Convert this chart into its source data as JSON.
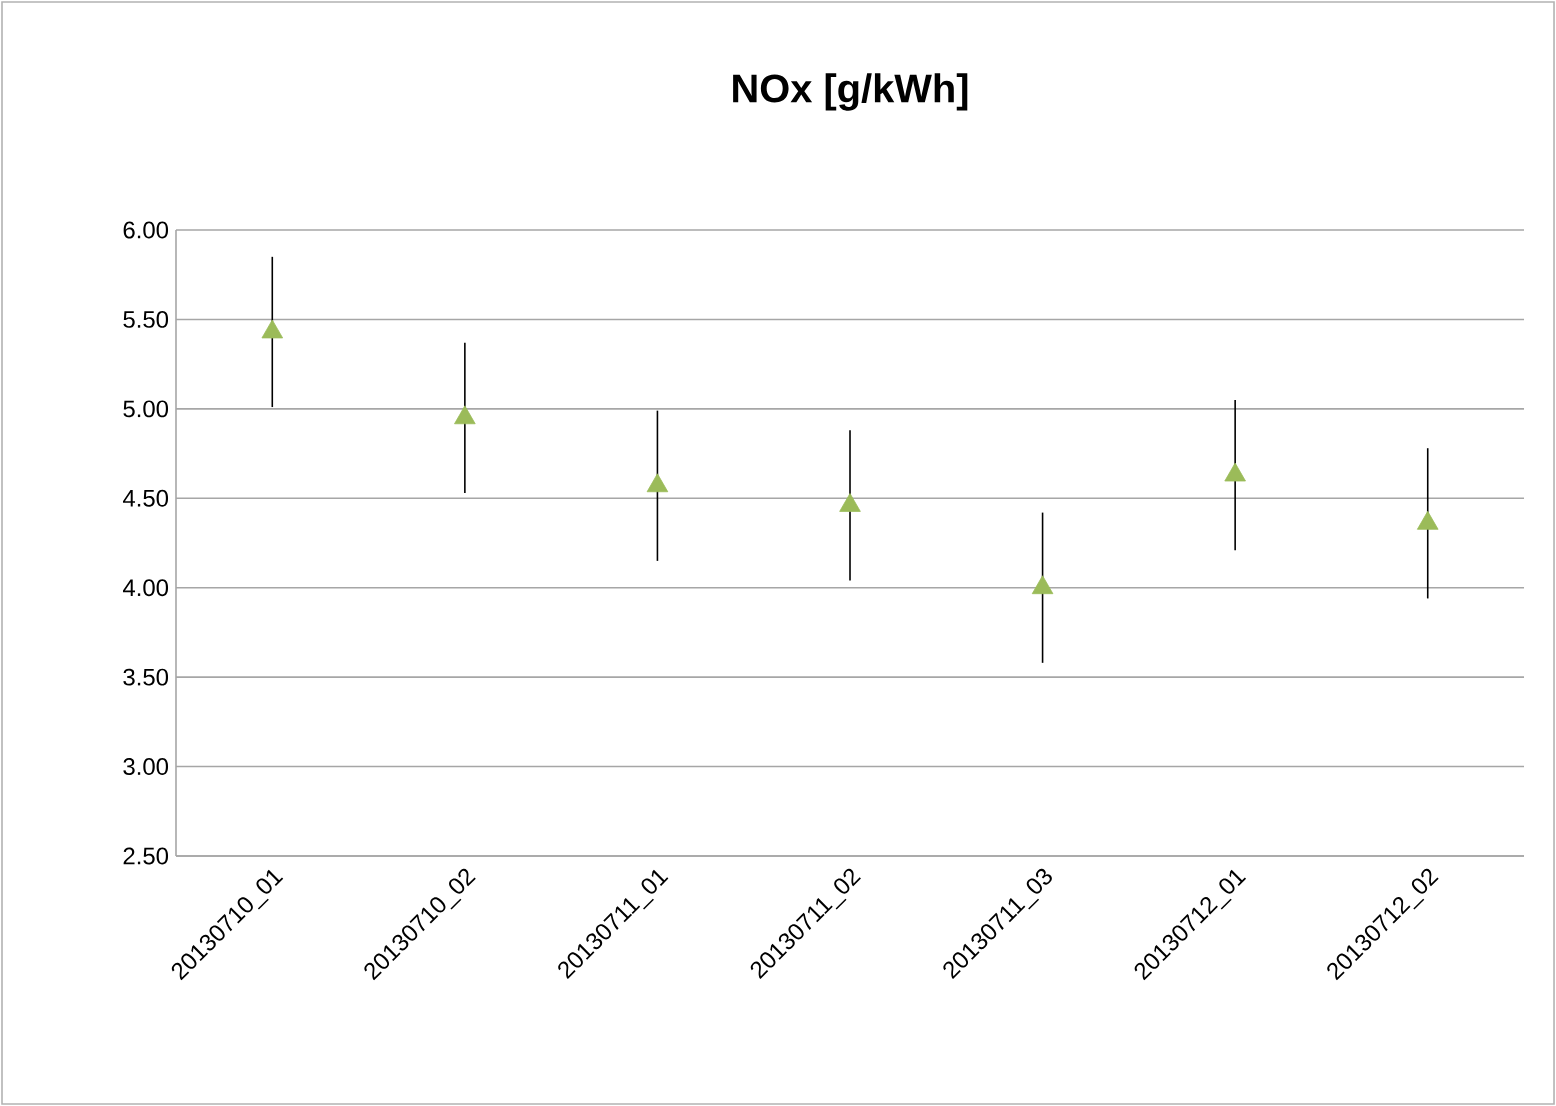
{
  "chart_data": {
    "type": "scatter",
    "title": "NOx [g/kWh]",
    "categories": [
      "20130710_01",
      "20130710_02",
      "20130711_01",
      "20130711_02",
      "20130711_03",
      "20130712_01",
      "20130712_02"
    ],
    "values": [
      5.43,
      4.95,
      4.57,
      4.46,
      4.0,
      4.63,
      4.36
    ],
    "errors": [
      0.42,
      0.42,
      0.42,
      0.42,
      0.42,
      0.42,
      0.42
    ],
    "color": "#9bbb59",
    "marker": "triangle",
    "ylim": [
      2.5,
      6.0
    ],
    "yticks": [
      {
        "value": 2.5,
        "label": "2.50"
      },
      {
        "value": 3.0,
        "label": "3.00"
      },
      {
        "value": 3.5,
        "label": "3.50"
      },
      {
        "value": 4.0,
        "label": "4.00"
      },
      {
        "value": 4.5,
        "label": "4.50"
      },
      {
        "value": 5.0,
        "label": "5.00"
      },
      {
        "value": 5.5,
        "label": "5.50"
      },
      {
        "value": 6.0,
        "label": "6.00"
      }
    ],
    "grid": "y"
  }
}
